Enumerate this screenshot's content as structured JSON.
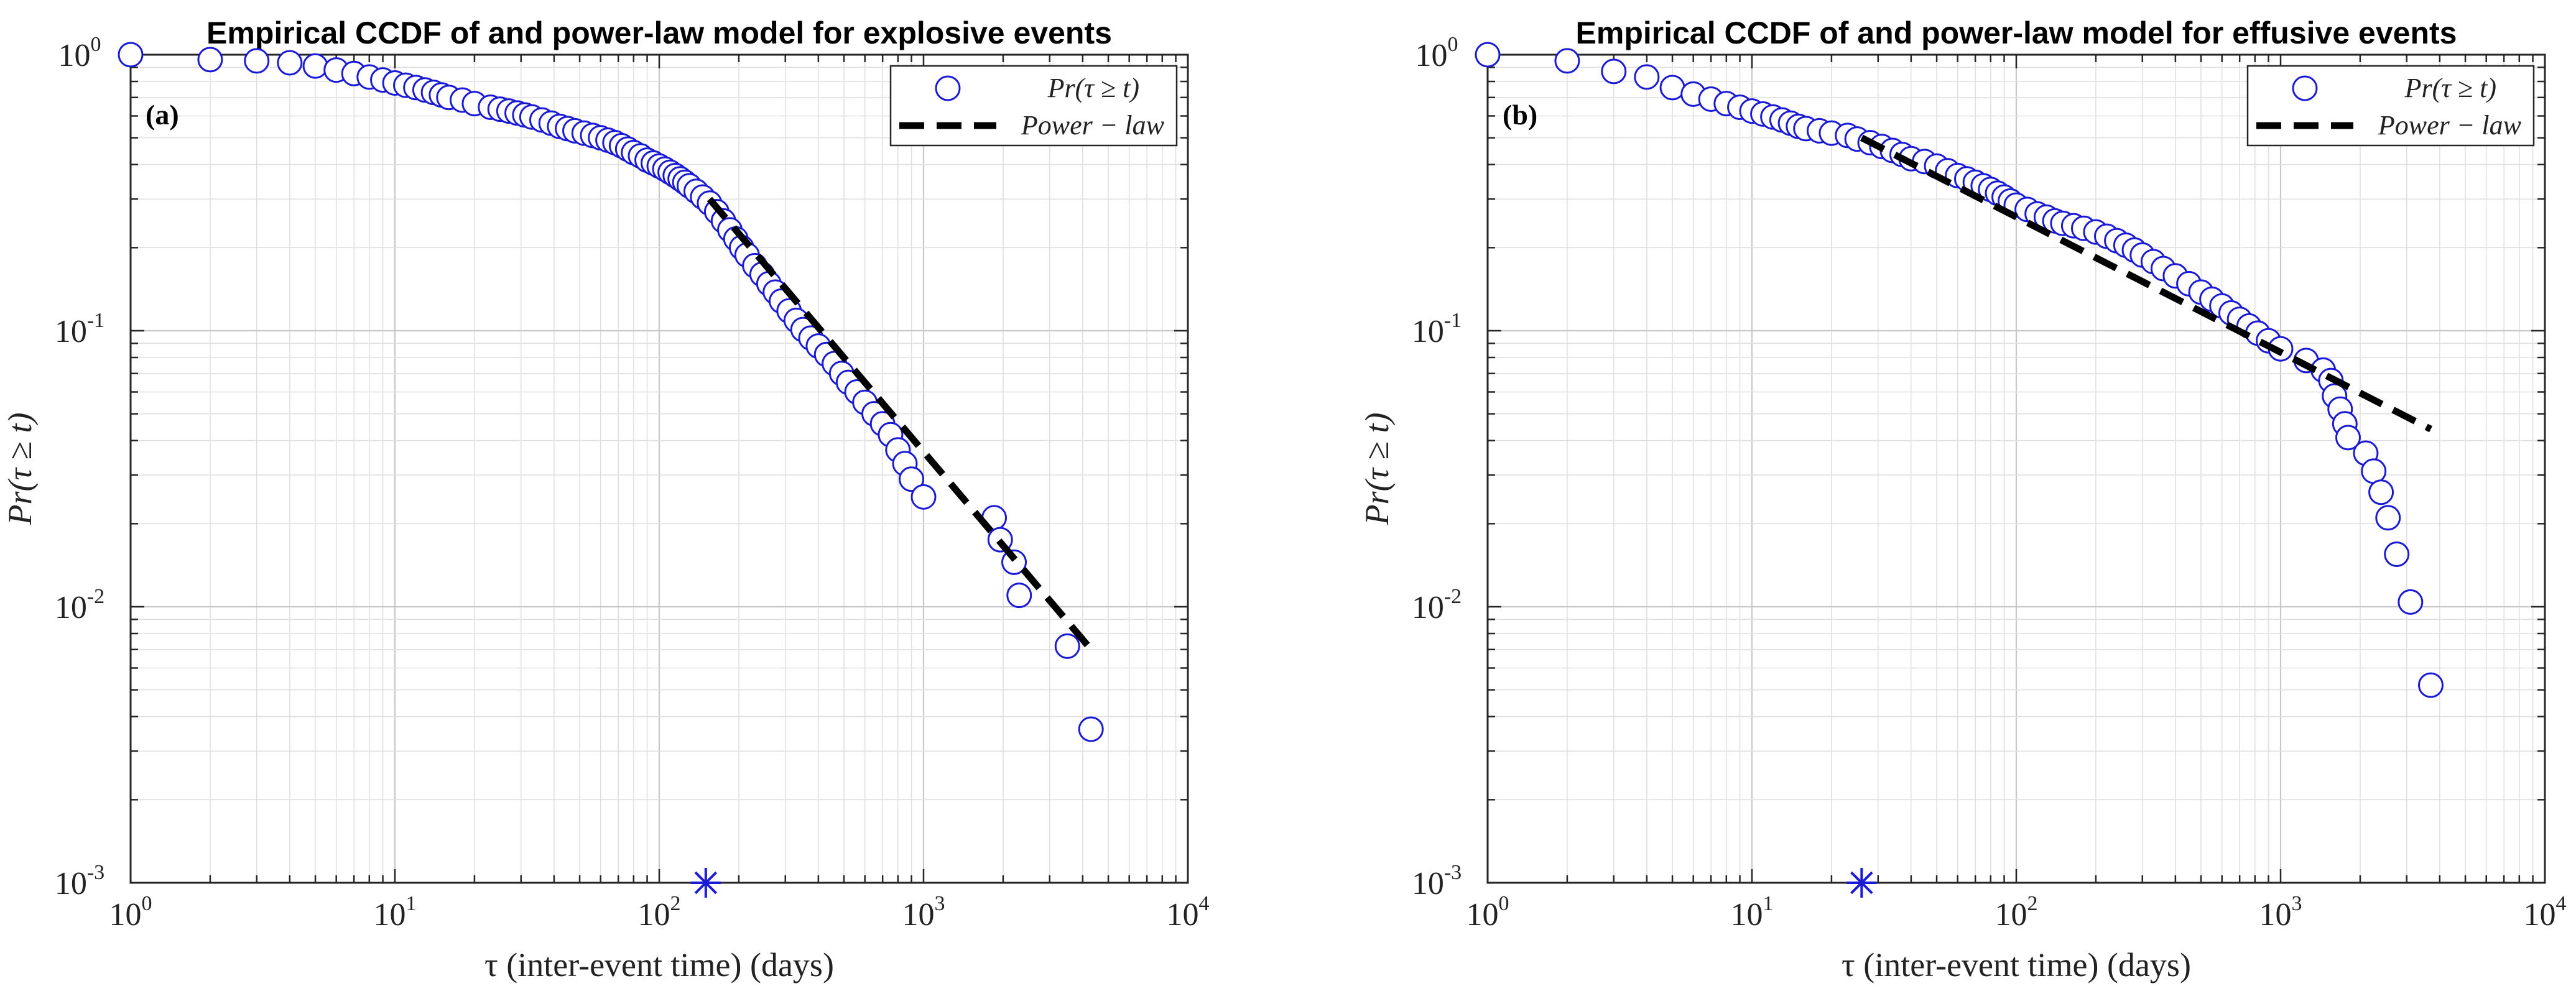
{
  "chart_data": [
    {
      "type": "scatter",
      "panel_label": "(a)",
      "title": "Empirical CCDF of and power-law model for explosive events",
      "xlabel": "τ (inter-event time) (days)",
      "ylabel": "Pr(τ ≥ t)",
      "xscale": "log",
      "yscale": "log",
      "xlim": [
        1,
        10000
      ],
      "ylim": [
        0.001,
        1
      ],
      "grid": true,
      "legend_position": "top-right",
      "x_ticks": [
        {
          "base": "10",
          "exp": "0"
        },
        {
          "base": "10",
          "exp": "1"
        },
        {
          "base": "10",
          "exp": "2"
        },
        {
          "base": "10",
          "exp": "3"
        },
        {
          "base": "10",
          "exp": "4"
        }
      ],
      "y_ticks": [
        {
          "base": "10",
          "exp": "-3"
        },
        {
          "base": "10",
          "exp": "-2"
        },
        {
          "base": "10",
          "exp": "-1"
        },
        {
          "base": "10",
          "exp": "0"
        }
      ],
      "series": [
        {
          "name": "Pr(τ ≥ t)",
          "marker": "circle",
          "color": "#1a1ad6",
          "points": [
            [
              1,
              1.0
            ],
            [
              2,
              0.96
            ],
            [
              3,
              0.95
            ],
            [
              4,
              0.935
            ],
            [
              5,
              0.91
            ],
            [
              6,
              0.88
            ],
            [
              7,
              0.855
            ],
            [
              8,
              0.83
            ],
            [
              9,
              0.81
            ],
            [
              10,
              0.79
            ],
            [
              11,
              0.775
            ],
            [
              12,
              0.76
            ],
            [
              13,
              0.745
            ],
            [
              14,
              0.73
            ],
            [
              15,
              0.715
            ],
            [
              16,
              0.7
            ],
            [
              18,
              0.685
            ],
            [
              20,
              0.665
            ],
            [
              23,
              0.645
            ],
            [
              25,
              0.635
            ],
            [
              27,
              0.625
            ],
            [
              29,
              0.615
            ],
            [
              31,
              0.605
            ],
            [
              33,
              0.595
            ],
            [
              36,
              0.58
            ],
            [
              39,
              0.565
            ],
            [
              42,
              0.55
            ],
            [
              45,
              0.54
            ],
            [
              48,
              0.53
            ],
            [
              52,
              0.52
            ],
            [
              56,
              0.51
            ],
            [
              60,
              0.5
            ],
            [
              64,
              0.49
            ],
            [
              68,
              0.48
            ],
            [
              72,
              0.468
            ],
            [
              76,
              0.455
            ],
            [
              80,
              0.442
            ],
            [
              85,
              0.43
            ],
            [
              90,
              0.415
            ],
            [
              95,
              0.405
            ],
            [
              100,
              0.395
            ],
            [
              105,
              0.385
            ],
            [
              110,
              0.375
            ],
            [
              115,
              0.365
            ],
            [
              120,
              0.355
            ],
            [
              125,
              0.345
            ],
            [
              130,
              0.335
            ],
            [
              138,
              0.32
            ],
            [
              146,
              0.305
            ],
            [
              155,
              0.29
            ],
            [
              165,
              0.27
            ],
            [
              175,
              0.25
            ],
            [
              185,
              0.232
            ],
            [
              195,
              0.215
            ],
            [
              205,
              0.2
            ],
            [
              215,
              0.188
            ],
            [
              230,
              0.172
            ],
            [
              245,
              0.16
            ],
            [
              260,
              0.148
            ],
            [
              275,
              0.138
            ],
            [
              290,
              0.128
            ],
            [
              310,
              0.118
            ],
            [
              330,
              0.109
            ],
            [
              350,
              0.101
            ],
            [
              375,
              0.094
            ],
            [
              400,
              0.088
            ],
            [
              430,
              0.082
            ],
            [
              460,
              0.076
            ],
            [
              490,
              0.07
            ],
            [
              520,
              0.065
            ],
            [
              560,
              0.06
            ],
            [
              600,
              0.055
            ],
            [
              650,
              0.05
            ],
            [
              700,
              0.046
            ],
            [
              750,
              0.042
            ],
            [
              800,
              0.037
            ],
            [
              850,
              0.033
            ],
            [
              900,
              0.029
            ],
            [
              1000,
              0.025
            ],
            [
              1850,
              0.021
            ],
            [
              1950,
              0.0175
            ],
            [
              2200,
              0.0145
            ],
            [
              2300,
              0.011
            ],
            [
              3500,
              0.0072
            ],
            [
              4300,
              0.0036
            ]
          ]
        },
        {
          "name": "Power − law",
          "style": "dashed",
          "color": "#000000",
          "points": [
            [
              155,
              0.3
            ],
            [
              4200,
              0.0072
            ]
          ]
        }
      ],
      "xmin_marker": {
        "x": 150,
        "y": 0.001,
        "marker": "asterisk",
        "color": "#1a1ad6"
      }
    },
    {
      "type": "scatter",
      "panel_label": "(b)",
      "title": "Empirical CCDF of and power-law model for effusive events",
      "xlabel": "τ (inter-event time) (days)",
      "ylabel": "Pr(τ ≥ t)",
      "xscale": "log",
      "yscale": "log",
      "xlim": [
        1,
        10000
      ],
      "ylim": [
        0.001,
        1
      ],
      "grid": true,
      "legend_position": "top-right",
      "x_ticks": [
        {
          "base": "10",
          "exp": "0"
        },
        {
          "base": "10",
          "exp": "1"
        },
        {
          "base": "10",
          "exp": "2"
        },
        {
          "base": "10",
          "exp": "3"
        },
        {
          "base": "10",
          "exp": "4"
        }
      ],
      "y_ticks": [
        {
          "base": "10",
          "exp": "-3"
        },
        {
          "base": "10",
          "exp": "-2"
        },
        {
          "base": "10",
          "exp": "-1"
        },
        {
          "base": "10",
          "exp": "0"
        }
      ],
      "series": [
        {
          "name": "Pr(τ ≥ t)",
          "marker": "circle",
          "color": "#1a1ad6",
          "points": [
            [
              1,
              1.0
            ],
            [
              2,
              0.95
            ],
            [
              3,
              0.87
            ],
            [
              4,
              0.83
            ],
            [
              5,
              0.76
            ],
            [
              6,
              0.72
            ],
            [
              7,
              0.69
            ],
            [
              8,
              0.665
            ],
            [
              9,
              0.645
            ],
            [
              10,
              0.625
            ],
            [
              11,
              0.61
            ],
            [
              12,
              0.595
            ],
            [
              13,
              0.58
            ],
            [
              14,
              0.565
            ],
            [
              15,
              0.55
            ],
            [
              16,
              0.54
            ],
            [
              18,
              0.53
            ],
            [
              20,
              0.52
            ],
            [
              23,
              0.51
            ],
            [
              25,
              0.495
            ],
            [
              28,
              0.48
            ],
            [
              31,
              0.465
            ],
            [
              34,
              0.45
            ],
            [
              37,
              0.435
            ],
            [
              40,
              0.42
            ],
            [
              45,
              0.41
            ],
            [
              50,
              0.395
            ],
            [
              55,
              0.38
            ],
            [
              60,
              0.365
            ],
            [
              65,
              0.355
            ],
            [
              70,
              0.345
            ],
            [
              75,
              0.335
            ],
            [
              80,
              0.325
            ],
            [
              85,
              0.315
            ],
            [
              90,
              0.305
            ],
            [
              95,
              0.295
            ],
            [
              100,
              0.285
            ],
            [
              110,
              0.275
            ],
            [
              120,
              0.265
            ],
            [
              130,
              0.258
            ],
            [
              140,
              0.25
            ],
            [
              150,
              0.245
            ],
            [
              165,
              0.24
            ],
            [
              180,
              0.235
            ],
            [
              200,
              0.228
            ],
            [
              220,
              0.22
            ],
            [
              240,
              0.212
            ],
            [
              260,
              0.204
            ],
            [
              280,
              0.196
            ],
            [
              300,
              0.188
            ],
            [
              330,
              0.178
            ],
            [
              360,
              0.168
            ],
            [
              400,
              0.158
            ],
            [
              450,
              0.148
            ],
            [
              500,
              0.138
            ],
            [
              550,
              0.13
            ],
            [
              600,
              0.123
            ],
            [
              650,
              0.116
            ],
            [
              700,
              0.11
            ],
            [
              760,
              0.104
            ],
            [
              820,
              0.098
            ],
            [
              900,
              0.092
            ],
            [
              1000,
              0.086
            ],
            [
              1250,
              0.078
            ],
            [
              1450,
              0.072
            ],
            [
              1550,
              0.066
            ],
            [
              1600,
              0.058
            ],
            [
              1680,
              0.052
            ],
            [
              1750,
              0.046
            ],
            [
              1800,
              0.041
            ],
            [
              2100,
              0.036
            ],
            [
              2250,
              0.031
            ],
            [
              2400,
              0.026
            ],
            [
              2550,
              0.021
            ],
            [
              2750,
              0.0155
            ],
            [
              3100,
              0.0104
            ],
            [
              3700,
              0.0052
            ]
          ]
        },
        {
          "name": "Power − law",
          "style": "dashed",
          "color": "#000000",
          "points": [
            [
              26,
              0.5
            ],
            [
              3700,
              0.044
            ]
          ]
        }
      ],
      "xmin_marker": {
        "x": 26,
        "y": 0.001,
        "marker": "asterisk",
        "color": "#1a1ad6"
      }
    }
  ]
}
